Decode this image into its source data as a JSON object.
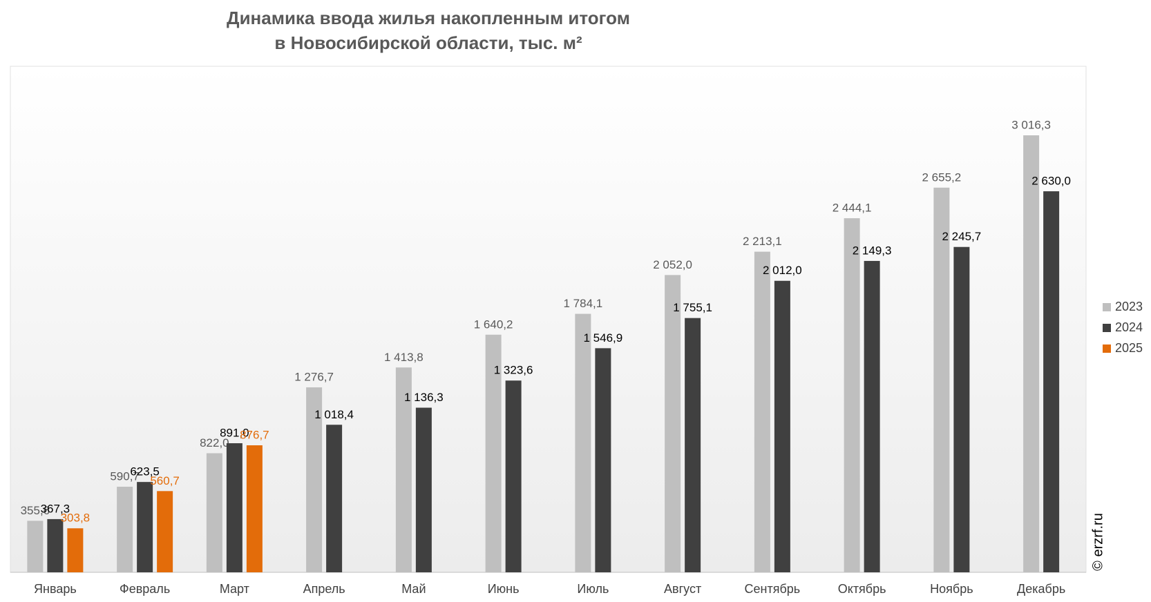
{
  "chart_data": {
    "type": "bar",
    "title": [
      "Динамика ввода жилья накопленным итогом",
      "в Новосибирской области, тыс. м²"
    ],
    "categories": [
      "Январь",
      "Февраль",
      "Март",
      "Апрель",
      "Май",
      "Июнь",
      "Июль",
      "Август",
      "Сентябрь",
      "Октябрь",
      "Ноябрь",
      "Декабрь"
    ],
    "series": [
      {
        "name": "2023",
        "color": "#bfbfbf",
        "label_color": "#595959",
        "values": [
          355.6,
          590.7,
          822.0,
          1276.7,
          1413.8,
          1640.2,
          1784.1,
          2052.0,
          2213.1,
          2444.1,
          2655.2,
          3016.3
        ],
        "value_labels": [
          "355,6",
          "590,7",
          "822,0",
          "1 276,7",
          "1 413,8",
          "1 640,2",
          "1 784,1",
          "2 052,0",
          "2 213,1",
          "2 444,1",
          "2 655,2",
          "3 016,3"
        ]
      },
      {
        "name": "2024",
        "color": "#404040",
        "label_color": "#000000",
        "values": [
          367.3,
          623.5,
          891.0,
          1018.4,
          1136.3,
          1323.6,
          1546.9,
          1755.1,
          2012.0,
          2149.3,
          2245.7,
          2630.0
        ],
        "value_labels": [
          "367,3",
          "623,5",
          "891,0",
          "1 018,4",
          "1 136,3",
          "1 323,6",
          "1 546,9",
          "1 755,1",
          "2 012,0",
          "2 149,3",
          "2 245,7",
          "2 630,0"
        ]
      },
      {
        "name": "2025",
        "color": "#e36c0a",
        "label_color": "#e36c0a",
        "values": [
          303.8,
          560.7,
          876.7,
          null,
          null,
          null,
          null,
          null,
          null,
          null,
          null,
          null
        ],
        "value_labels": [
          "303,8",
          "560,7",
          "876,7",
          null,
          null,
          null,
          null,
          null,
          null,
          null,
          null,
          null
        ]
      }
    ],
    "legend": "right",
    "source": "© erzrf.ru"
  }
}
